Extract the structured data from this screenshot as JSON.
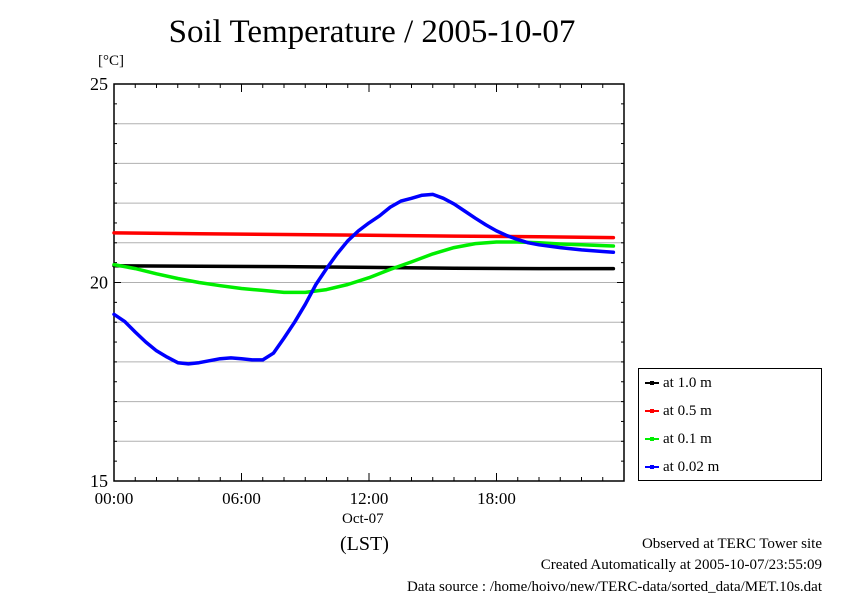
{
  "chart_data": {
    "type": "line",
    "title": "Soil Temperature / 2005-10-07",
    "ylabel": "[°C]",
    "xlabel": "(LST)",
    "x_date_label": "Oct-07",
    "xlim": [
      0,
      24
    ],
    "ylim": [
      15,
      25
    ],
    "y_ticks": [
      15,
      20,
      25
    ],
    "x_ticks": [
      0,
      6,
      12,
      18
    ],
    "x_tick_labels": [
      "00:00",
      "06:00",
      "12:00",
      "18:00"
    ],
    "grid": "horizontal",
    "legend_position": "right",
    "series": [
      {
        "name": "at 1.0 m",
        "color": "#000000",
        "x": [
          0,
          4,
          8,
          12,
          16,
          20,
          23.5
        ],
        "y": [
          20.42,
          20.41,
          20.4,
          20.38,
          20.36,
          20.35,
          20.35
        ]
      },
      {
        "name": "at 0.5 m",
        "color": "#ff0000",
        "x": [
          0,
          4,
          8,
          12,
          16,
          20,
          23.5
        ],
        "y": [
          21.25,
          21.23,
          21.21,
          21.19,
          21.17,
          21.15,
          21.13
        ]
      },
      {
        "name": "at 0.1 m",
        "color": "#00ee00",
        "x": [
          0,
          1,
          2,
          3,
          4,
          5,
          6,
          7,
          8,
          9,
          10,
          11,
          12,
          13,
          14,
          15,
          16,
          17,
          18,
          19,
          20,
          21,
          22,
          23,
          23.5
        ],
        "y": [
          20.45,
          20.35,
          20.22,
          20.1,
          20.0,
          19.92,
          19.85,
          19.8,
          19.75,
          19.75,
          19.82,
          19.95,
          20.12,
          20.33,
          20.52,
          20.72,
          20.88,
          20.98,
          21.02,
          21.02,
          21.0,
          20.97,
          20.95,
          20.93,
          20.92
        ]
      },
      {
        "name": "at 0.02 m",
        "color": "#0000ff",
        "x": [
          0,
          0.5,
          1,
          1.5,
          2,
          2.5,
          3,
          3.5,
          4,
          4.5,
          5,
          5.5,
          6,
          6.5,
          7,
          7.5,
          8,
          8.5,
          9,
          9.5,
          10,
          10.5,
          11,
          11.5,
          12,
          12.5,
          13,
          13.5,
          14,
          14.5,
          15,
          15.5,
          16,
          16.5,
          17,
          17.5,
          18,
          18.5,
          19,
          19.5,
          20,
          21,
          22,
          23,
          23.5
        ],
        "y": [
          19.2,
          19.02,
          18.75,
          18.5,
          18.28,
          18.12,
          17.98,
          17.95,
          17.98,
          18.03,
          18.08,
          18.1,
          18.08,
          18.05,
          18.05,
          18.22,
          18.6,
          19.0,
          19.45,
          19.95,
          20.35,
          20.72,
          21.05,
          21.3,
          21.5,
          21.68,
          21.9,
          22.05,
          22.12,
          22.2,
          22.22,
          22.12,
          21.98,
          21.8,
          21.62,
          21.45,
          21.3,
          21.18,
          21.08,
          21.0,
          20.95,
          20.88,
          20.82,
          20.78,
          20.76
        ]
      }
    ]
  },
  "legend": {
    "items": [
      {
        "label": "at 1.0 m",
        "color": "#000000"
      },
      {
        "label": "at 0.5 m",
        "color": "#ff0000"
      },
      {
        "label": "at 0.1 m",
        "color": "#00ee00"
      },
      {
        "label": "at 0.02 m",
        "color": "#0000ff"
      }
    ]
  },
  "footer": {
    "observed": "Observed at TERC Tower site",
    "created": "Created Automatically at 2005-10-07/23:55:09",
    "source": "Data source : /home/hoivo/new/TERC-data/sorted_data/MET.10s.dat"
  }
}
